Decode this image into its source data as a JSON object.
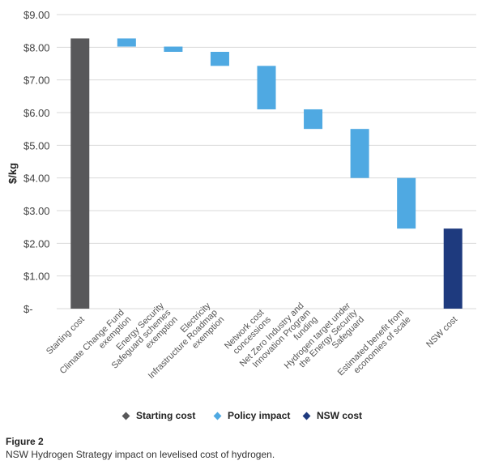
{
  "chart_data": {
    "type": "bar",
    "subtype": "waterfall",
    "ylabel": "$/kg",
    "ylim": [
      0,
      9
    ],
    "yticks": [
      "$-",
      "$1.00",
      "$2.00",
      "$3.00",
      "$4.00",
      "$5.00",
      "$6.00",
      "$7.00",
      "$8.00",
      "$9.00"
    ],
    "grid": true,
    "legend_position": "bottom",
    "categories": [
      {
        "label": "Starting cost",
        "from": 0,
        "to": 8.27,
        "kind": "start"
      },
      {
        "label": "Climate Change Fund exemption",
        "from": 8.27,
        "to": 8.02,
        "kind": "policy"
      },
      {
        "label": "Energy Security Safeguard schemes exemption",
        "from": 8.02,
        "to": 7.86,
        "kind": "policy"
      },
      {
        "label": "Electricity Infrastructure Roadmap exemption",
        "from": 7.86,
        "to": 7.43,
        "kind": "policy"
      },
      {
        "label": "Network cost concessions",
        "from": 7.43,
        "to": 6.1,
        "kind": "policy"
      },
      {
        "label": "Net Zero Industry and Innovation Program funding",
        "from": 6.1,
        "to": 5.5,
        "kind": "policy"
      },
      {
        "label": "Hydrogen target under the Energy Security Safeguard",
        "from": 5.5,
        "to": 4.0,
        "kind": "policy"
      },
      {
        "label": "Estimated benefit from economies of scale",
        "from": 4.0,
        "to": 2.45,
        "kind": "policy"
      },
      {
        "label": "NSW cost",
        "from": 0,
        "to": 2.45,
        "kind": "end"
      }
    ],
    "legend": [
      {
        "label": "Starting cost",
        "kind": "start"
      },
      {
        "label": "Policy impact",
        "kind": "policy"
      },
      {
        "label": "NSW cost",
        "kind": "end"
      }
    ],
    "colors": {
      "start": "#58585a",
      "policy": "#4fa9e2",
      "end": "#1e3a7e",
      "grid": "#d9d9d9"
    }
  },
  "caption": {
    "figure": "Figure 2",
    "text": "NSW Hydrogen Strategy impact on levelised cost of hydrogen."
  }
}
